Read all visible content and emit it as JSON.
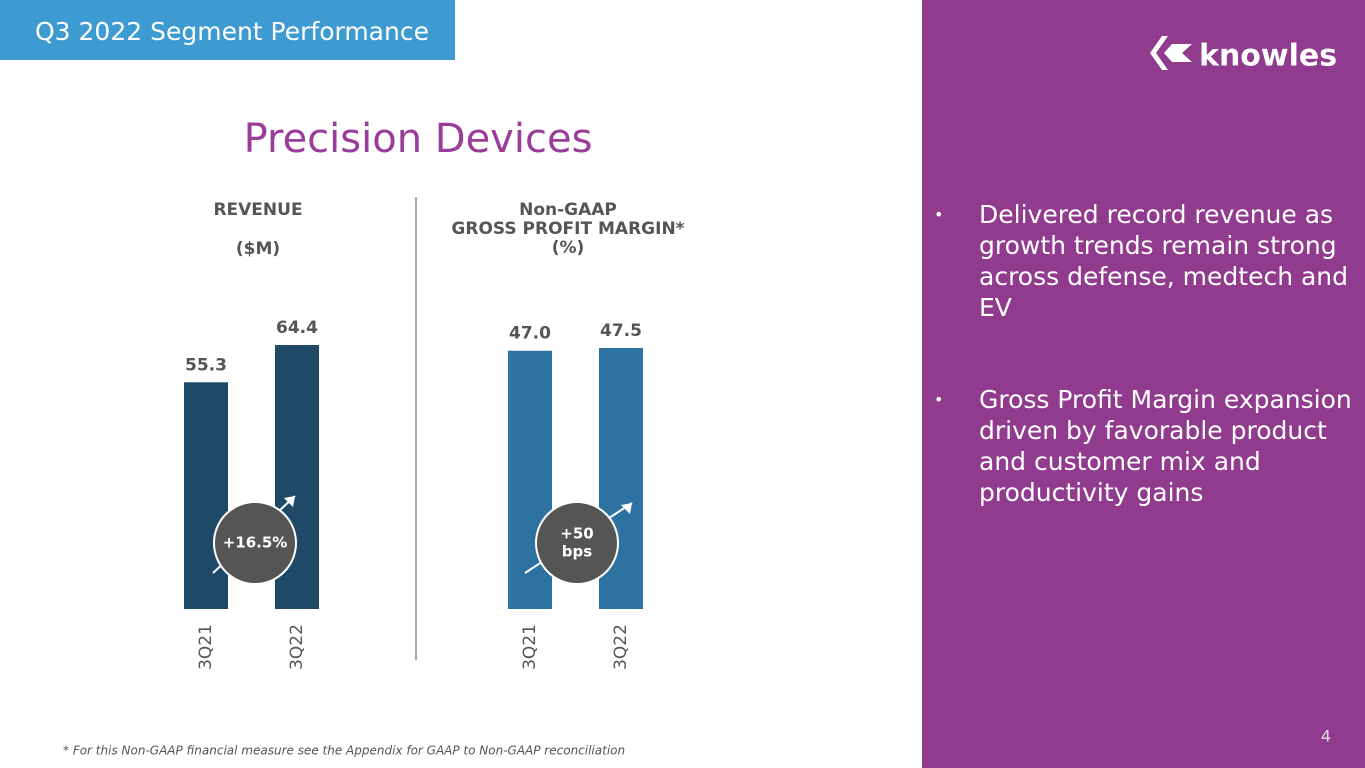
{
  "header": {
    "title": "Q3 2022 Segment Performance",
    "logo": "knowles"
  },
  "heading": "Precision Devices",
  "chart_data": [
    {
      "type": "bar",
      "title_lines": [
        "REVENUE",
        "($M)"
      ],
      "categories": [
        "3Q21",
        "3Q22"
      ],
      "values": [
        55.3,
        64.4
      ],
      "color": "#1e4a68",
      "annotation_lines": [
        "+16.5%"
      ]
    },
    {
      "type": "bar",
      "title_lines": [
        "Non-GAAP",
        "GROSS PROFIT MARGIN*",
        "(%)"
      ],
      "categories": [
        "3Q21",
        "3Q22"
      ],
      "values": [
        47.0,
        47.5
      ],
      "value_labels": [
        "47.0",
        "47.5"
      ],
      "color": "#2d72a1",
      "annotation_lines": [
        "+50",
        "bps"
      ]
    }
  ],
  "bullets": [
    "Delivered record revenue as growth trends remain strong across defense, medtech and EV",
    "Gross Profit Margin expansion driven by favorable product and customer mix and productivity gains"
  ],
  "footnote": "* For this Non-GAAP financial measure see the Appendix for GAAP to Non-GAAP reconciliation",
  "page_number": "4"
}
